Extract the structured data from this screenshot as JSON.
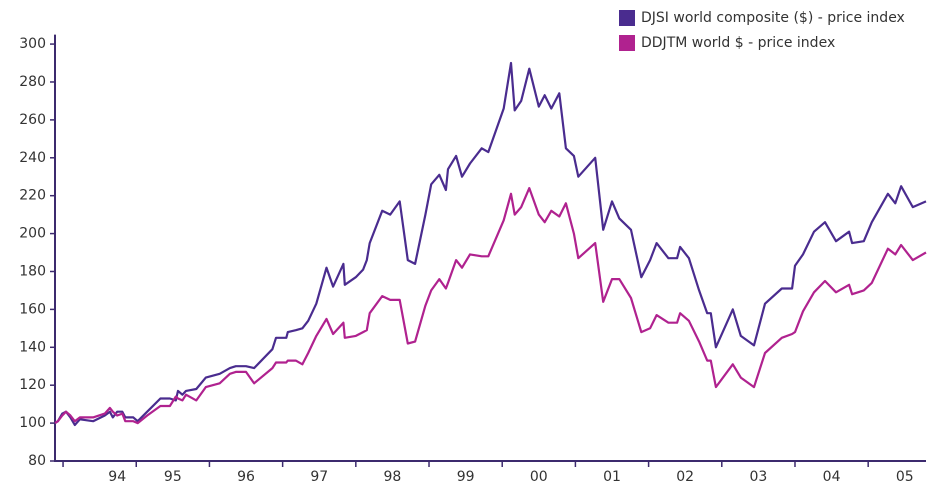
{
  "chart_data": {
    "type": "line",
    "x": [
      1993.89,
      1993.93,
      1993.99,
      1994.04,
      1994.1,
      1994.16,
      1994.23,
      1994.41,
      1994.57,
      1994.64,
      1994.68,
      1994.74,
      1994.81,
      1994.85,
      1994.96,
      1995.02,
      1995.15,
      1995.33,
      1995.46,
      1995.54,
      1995.57,
      1995.63,
      1995.68,
      1995.82,
      1995.95,
      1996.14,
      1996.28,
      1996.36,
      1996.5,
      1996.61,
      1996.86,
      1996.91,
      1997.05,
      1997.07,
      1997.18,
      1997.27,
      1997.35,
      1997.46,
      1997.6,
      1997.69,
      1997.83,
      1997.85,
      1998.0,
      1998.1,
      1998.15,
      1998.19,
      1998.36,
      1998.47,
      1998.6,
      1998.71,
      1998.81,
      1998.95,
      1999.03,
      1999.14,
      1999.23,
      1999.26,
      1999.37,
      1999.45,
      1999.56,
      1999.72,
      1999.81,
      2000.02,
      2000.12,
      2000.17,
      2000.26,
      2000.37,
      2000.5,
      2000.58,
      2000.67,
      2000.78,
      2000.87,
      2000.98,
      2001.04,
      2001.27,
      2001.38,
      2001.5,
      2001.6,
      2001.76,
      2001.9,
      2002.02,
      2002.11,
      2002.27,
      2002.39,
      2002.43,
      2002.55,
      2002.69,
      2002.8,
      2002.85,
      2002.92,
      2003.15,
      2003.26,
      2003.44,
      2003.59,
      2003.82,
      2003.96,
      2004.0,
      2004.11,
      2004.26,
      2004.41,
      2004.56,
      2004.74,
      2004.78,
      2004.94,
      2005.05,
      2005.27,
      2005.37,
      2005.45,
      2005.61,
      2005.79
    ],
    "series": [
      {
        "name": "DJSI world composite ($) - price index",
        "color": "#4a2c8f",
        "values": [
          100,
          101,
          105,
          106,
          103,
          99,
          102,
          101,
          104,
          106,
          103,
          106,
          106,
          103,
          103,
          101,
          106,
          113,
          113,
          112,
          117,
          115,
          117,
          118,
          124,
          126,
          129,
          130,
          130,
          129,
          139,
          145,
          145,
          148,
          149,
          150,
          154,
          163,
          182,
          172,
          184,
          173,
          177,
          181,
          186,
          195,
          212,
          210,
          217,
          186,
          184,
          210,
          226,
          231,
          223,
          234,
          241,
          230,
          237,
          245,
          243,
          266,
          290,
          265,
          270,
          287,
          267,
          273,
          266,
          274,
          245,
          241,
          230,
          240,
          202,
          217,
          208,
          202,
          177,
          186,
          195,
          187,
          187,
          193,
          187,
          170,
          158,
          158,
          140,
          160,
          146,
          141,
          163,
          171,
          171,
          183,
          189,
          201,
          206,
          196,
          201,
          195,
          196,
          206,
          221,
          216,
          225,
          214,
          217
        ]
      },
      {
        "name": "DDJTM world $ - price index",
        "color": "#b0228f",
        "values": [
          100,
          101,
          104,
          106,
          104,
          101,
          103,
          103,
          105,
          108,
          106,
          104,
          105,
          101,
          101,
          100,
          104,
          109,
          109,
          114,
          113,
          112,
          115,
          112,
          119,
          121,
          126,
          127,
          127,
          121,
          129,
          132,
          132,
          133,
          133,
          131,
          137,
          146,
          155,
          147,
          153,
          145,
          146,
          148,
          149,
          158,
          167,
          165,
          165,
          142,
          143,
          162,
          170,
          176,
          171,
          174,
          186,
          182,
          189,
          188,
          188,
          207,
          221,
          210,
          214,
          224,
          210,
          206,
          212,
          209,
          216,
          200,
          187,
          195,
          164,
          176,
          176,
          166,
          148,
          150,
          157,
          153,
          153,
          158,
          154,
          143,
          133,
          133,
          119,
          131,
          124,
          119,
          137,
          145,
          147,
          148,
          159,
          169,
          175,
          169,
          173,
          168,
          170,
          174,
          192,
          189,
          194,
          186,
          190
        ]
      }
    ],
    "xlim": [
      1993.89,
      2005.79
    ],
    "xticks": [
      {
        "value": 1994.74,
        "label": "94"
      },
      {
        "value": 1995.5,
        "label": "95"
      },
      {
        "value": 1996.5,
        "label": "96"
      },
      {
        "value": 1997.5,
        "label": "97"
      },
      {
        "value": 1998.5,
        "label": "98"
      },
      {
        "value": 1999.5,
        "label": "99"
      },
      {
        "value": 2000.5,
        "label": "00"
      },
      {
        "value": 2001.5,
        "label": "01"
      },
      {
        "value": 2002.5,
        "label": "02"
      },
      {
        "value": 2003.5,
        "label": "03"
      },
      {
        "value": 2004.5,
        "label": "04"
      },
      {
        "value": 2005.5,
        "label": "05"
      }
    ],
    "ylim": [
      80,
      305
    ],
    "yticks": [
      80,
      100,
      120,
      140,
      160,
      180,
      200,
      220,
      240,
      260,
      280,
      300
    ],
    "legend": "top-right"
  }
}
